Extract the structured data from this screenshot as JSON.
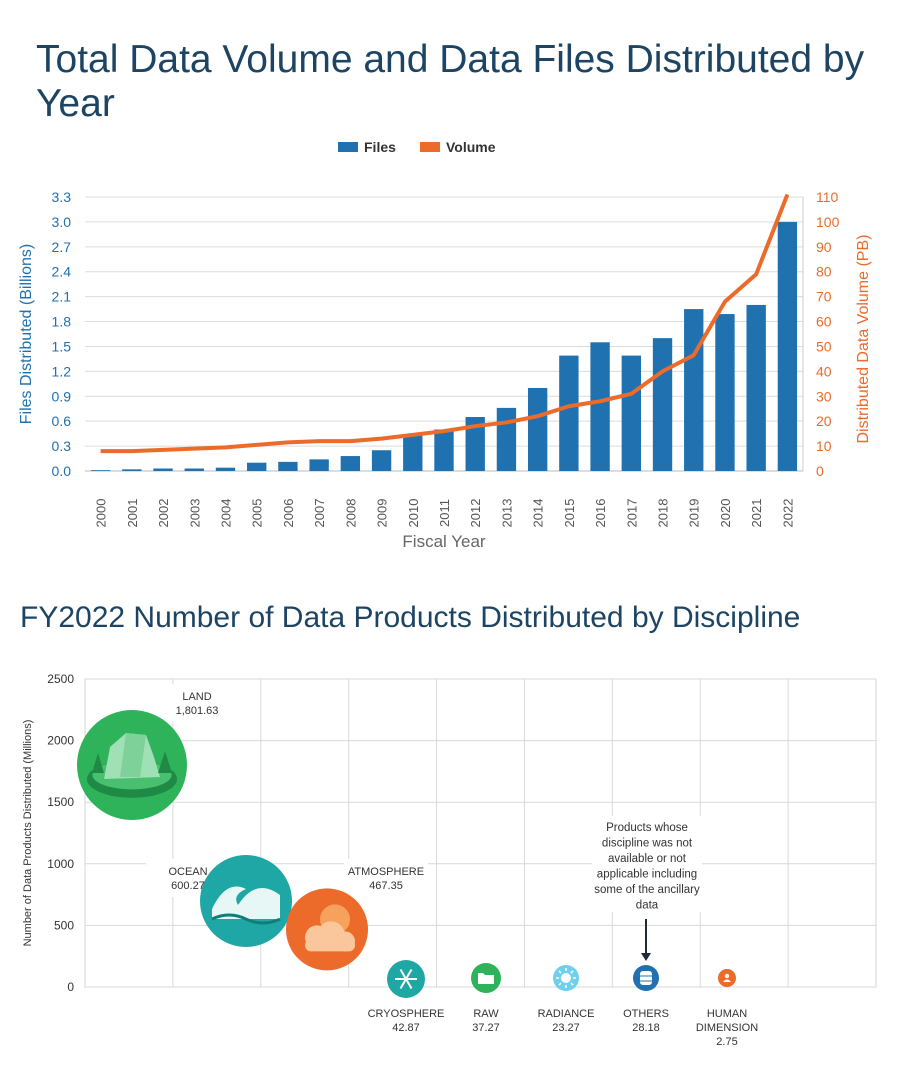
{
  "colors": {
    "files": "#2071b0",
    "volume": "#ec6a2a",
    "title": "#1d4463",
    "grid": "#dcdcdc",
    "axis_text": "#555555",
    "land": "#2fb35a",
    "ocean": "#1ea7a4",
    "atmosphere": "#ec6a2a",
    "cryosphere": "#1ea7a4",
    "raw": "#2fb35a",
    "radiance": "#6fd0ee",
    "others": "#2071b0",
    "human": "#ec6a2a"
  },
  "chart_data": [
    {
      "type": "bar",
      "title": "Total Data Volume and Data Files Distributed by Year",
      "xlabel": "Fiscal Year",
      "ylabel": "Files Distributed (Billions)",
      "y2label": "Distributed Data Volume (PB)",
      "legend": [
        "Files",
        "Volume"
      ],
      "legend_placement": "top-center",
      "categories": [
        "2000",
        "2001",
        "2002",
        "2003",
        "2004",
        "2005",
        "2006",
        "2007",
        "2008",
        "2009",
        "2010",
        "2011",
        "2012",
        "2013",
        "2014",
        "2015",
        "2016",
        "2017",
        "2018",
        "2019",
        "2020",
        "2021",
        "2022"
      ],
      "series": [
        {
          "name": "Files",
          "type": "bar",
          "axis": "left",
          "values": [
            0.01,
            0.02,
            0.03,
            0.03,
            0.04,
            0.1,
            0.11,
            0.14,
            0.18,
            0.25,
            0.44,
            0.5,
            0.65,
            0.76,
            1.0,
            1.39,
            1.55,
            1.39,
            1.6,
            1.95,
            1.89,
            2.0,
            3.0
          ]
        },
        {
          "name": "Volume",
          "type": "line",
          "axis": "right",
          "values": [
            8,
            8,
            8.5,
            9,
            9.5,
            10.5,
            11.5,
            12,
            12,
            13,
            14.5,
            16,
            18,
            19.5,
            22,
            26,
            28,
            31,
            40,
            46.5,
            68,
            79,
            111
          ]
        }
      ],
      "ylim": [
        0,
        3.3
      ],
      "yticks": [
        "0.0",
        "0.3",
        "0.6",
        "0.9",
        "1.2",
        "1.5",
        "1.8",
        "2.1",
        "2.4",
        "2.7",
        "3.0",
        "3.3"
      ],
      "y2lim": [
        0,
        110
      ],
      "y2ticks": [
        "0",
        "10",
        "20",
        "30",
        "40",
        "50",
        "60",
        "70",
        "80",
        "90",
        "100",
        "110"
      ],
      "grid": true
    },
    {
      "type": "scatter",
      "title": "FY2022 Number of Data Products Distributed by Discipline",
      "ylabel": "Number of Data Products Distributed (Millions)",
      "ylim": [
        0,
        2500
      ],
      "yticks": [
        "0",
        "500",
        "1000",
        "1500",
        "2000",
        "2500"
      ],
      "grid": true,
      "points": [
        {
          "name": "LAND",
          "value": 1801.63,
          "label": "1,801.63",
          "icon": "land-icon"
        },
        {
          "name": "OCEAN",
          "value": 600.27,
          "label": "600.27",
          "icon": "wave-icon"
        },
        {
          "name": "ATMOSPHERE",
          "value": 467.35,
          "label": "467.35",
          "icon": "sun-cloud-icon"
        },
        {
          "name": "CRYOSPHERE",
          "value": 42.87,
          "label": "42.87",
          "icon": "snowflake-icon"
        },
        {
          "name": "RAW",
          "value": 37.27,
          "label": "37.27",
          "icon": "folder-icon"
        },
        {
          "name": "RADIANCE",
          "value": 23.27,
          "label": "23.27",
          "icon": "sun-icon"
        },
        {
          "name": "OTHERS",
          "value": 28.18,
          "label": "28.18",
          "icon": "database-icon"
        },
        {
          "name": "HUMAN DIMENSION",
          "value": 2.75,
          "label": "2.75",
          "icon": "person-icon",
          "label_lines": [
            "HUMAN",
            "DIMENSION"
          ]
        }
      ],
      "annotation": {
        "lines": [
          "Products whose",
          "discipline was not",
          "available or not",
          "applicable including",
          "some of the ancillary",
          "data"
        ]
      }
    }
  ]
}
